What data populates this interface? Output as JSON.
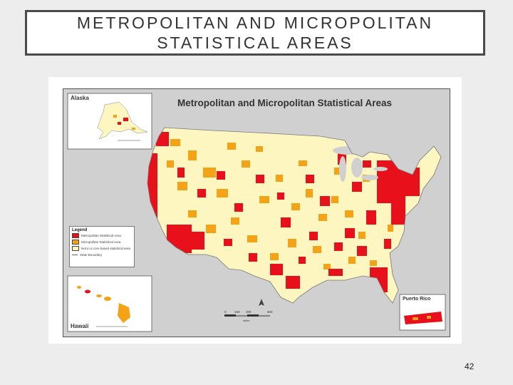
{
  "slide": {
    "title_line1": "METROPOLITAN AND MICROPOLITAN",
    "title_line2": "STATISTICAL AREAS",
    "page_number": "42"
  },
  "map": {
    "title": "Metropolitan and Micropolitan Statistical Areas",
    "insets": {
      "alaska": "Alaska",
      "hawaii": "Hawaii",
      "puerto_rico": "Puerto Rico"
    },
    "legend": {
      "title": "Legend",
      "items": [
        {
          "label": "Metropolitan Statistical Area",
          "color": "#e8101a"
        },
        {
          "label": "Micropolitan Statistical Area",
          "color": "#f5a316"
        },
        {
          "label": "Not in a core based statistical area",
          "color": "#fdf6c0"
        },
        {
          "label": "State Boundary",
          "color": "#666666"
        }
      ]
    },
    "scale": {
      "ticks": [
        "0",
        "150",
        "300",
        "600"
      ],
      "unit": "miles"
    },
    "colors": {
      "metro": "#e8101a",
      "micro": "#f5a316",
      "none": "#fdf6c0",
      "background": "#d0d0d0",
      "water": "#d0d0d0"
    }
  }
}
